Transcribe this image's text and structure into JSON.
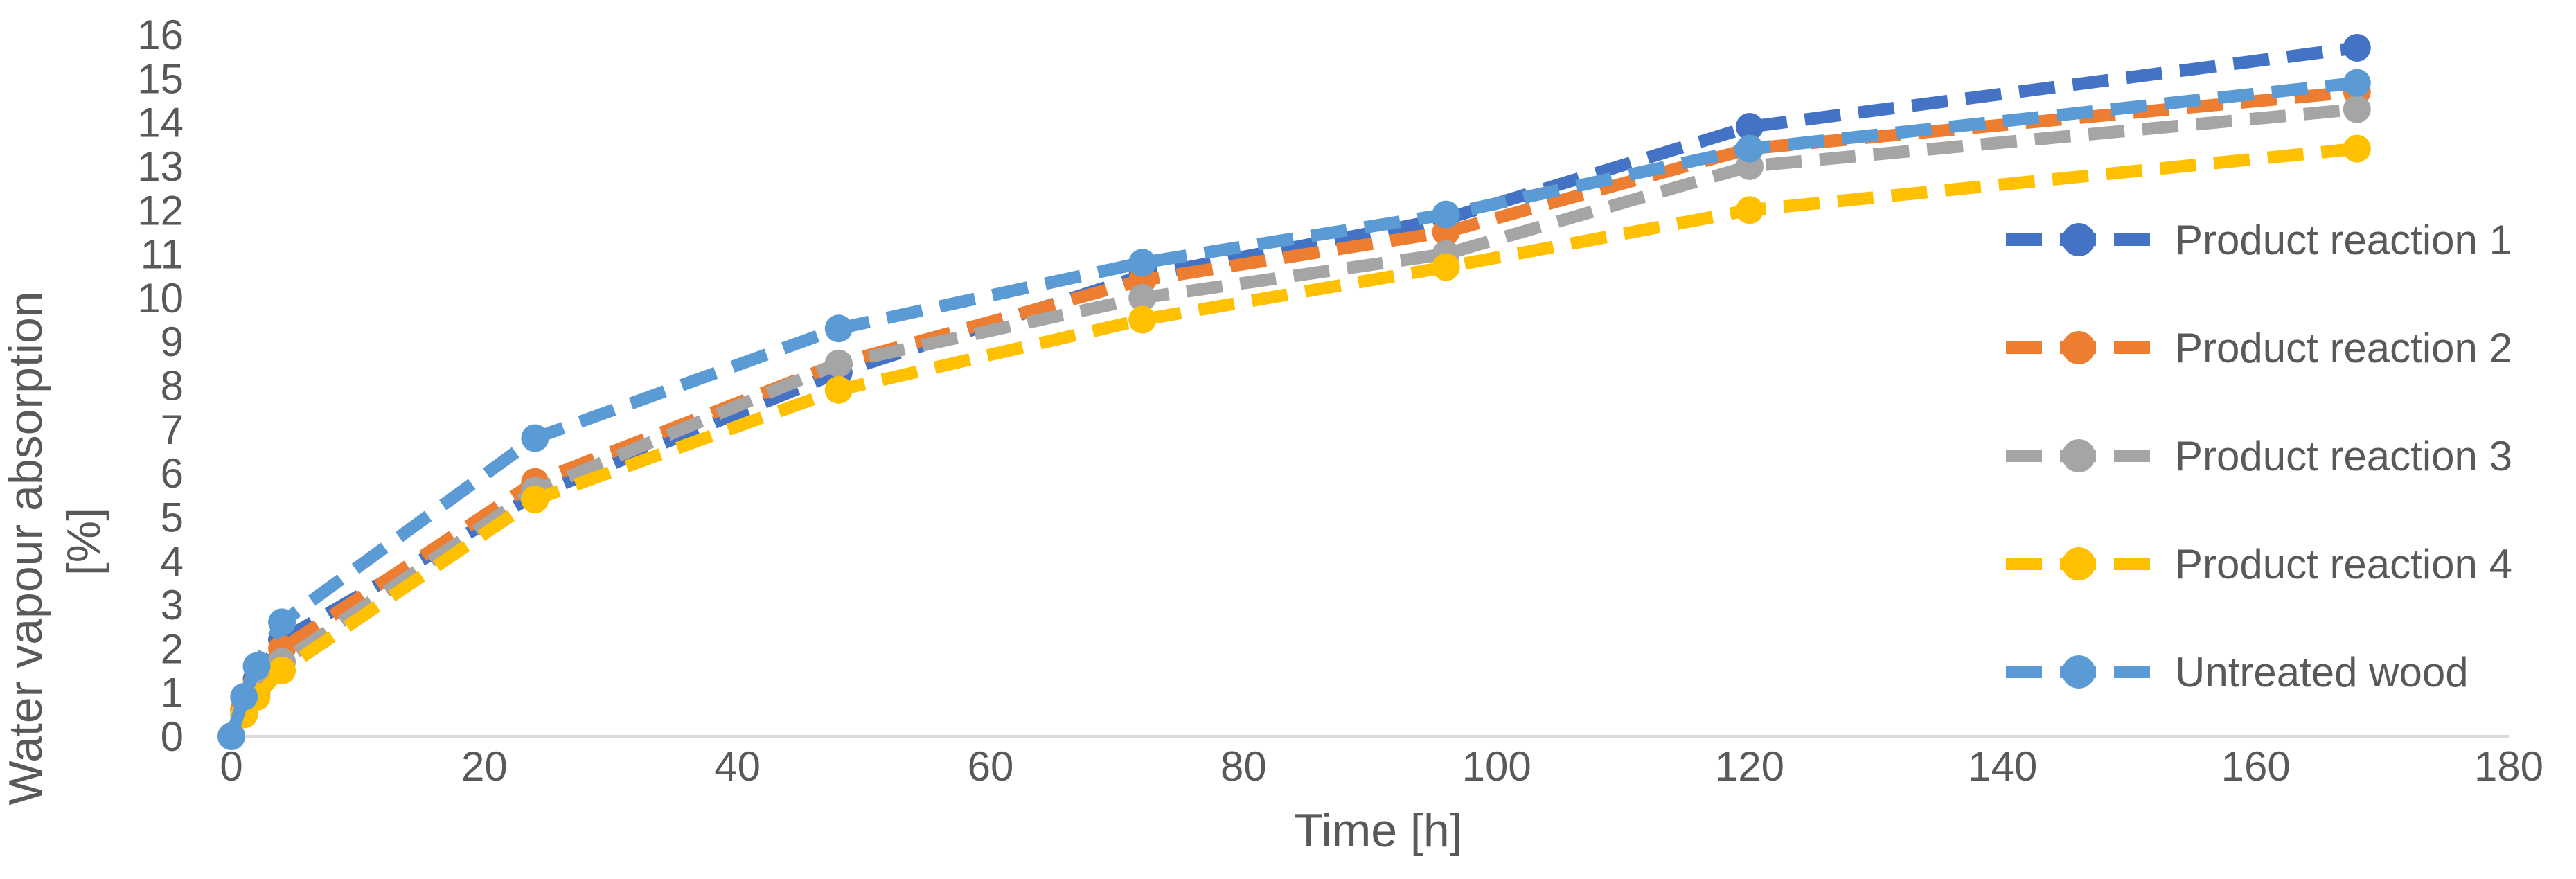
{
  "chart_data": {
    "type": "line",
    "title": "",
    "xlabel": "Time [h]",
    "ylabel_lines": [
      "Water vapour absorption",
      "[%]"
    ],
    "xlim": [
      0,
      180
    ],
    "ylim": [
      0,
      16
    ],
    "x_ticks": [
      0,
      20,
      40,
      60,
      80,
      100,
      120,
      140,
      160,
      180
    ],
    "y_ticks": [
      0,
      1,
      2,
      3,
      4,
      5,
      6,
      7,
      8,
      9,
      10,
      11,
      12,
      13,
      14,
      15,
      16
    ],
    "grid": false,
    "legend_position": "right",
    "x": [
      0,
      1,
      2,
      4,
      24,
      48,
      72,
      96,
      120,
      168
    ],
    "series": [
      {
        "name": "Product reaction 1",
        "color": "#4472C4",
        "values": [
          0,
          0.6,
          1.3,
          2.2,
          5.5,
          8.3,
          10.5,
          11.8,
          13.9,
          15.7
        ]
      },
      {
        "name": "Product reaction 2",
        "color": "#ED7D31",
        "values": [
          0,
          0.6,
          1.2,
          2.0,
          5.8,
          8.5,
          10.4,
          11.5,
          13.4,
          14.7
        ]
      },
      {
        "name": "Product reaction 3",
        "color": "#A5A5A5",
        "values": [
          0,
          0.5,
          1.0,
          1.7,
          5.6,
          8.5,
          10.0,
          11.0,
          13.0,
          14.3
        ]
      },
      {
        "name": "Product reaction 4",
        "color": "#FFC000",
        "values": [
          0,
          0.5,
          0.9,
          1.5,
          5.4,
          7.9,
          9.5,
          10.7,
          12.0,
          13.4
        ]
      },
      {
        "name": "Untreated wood",
        "color": "#5B9BD5",
        "values": [
          0,
          0.9,
          1.6,
          2.6,
          6.8,
          9.3,
          10.8,
          11.9,
          13.4,
          14.9
        ]
      }
    ]
  }
}
